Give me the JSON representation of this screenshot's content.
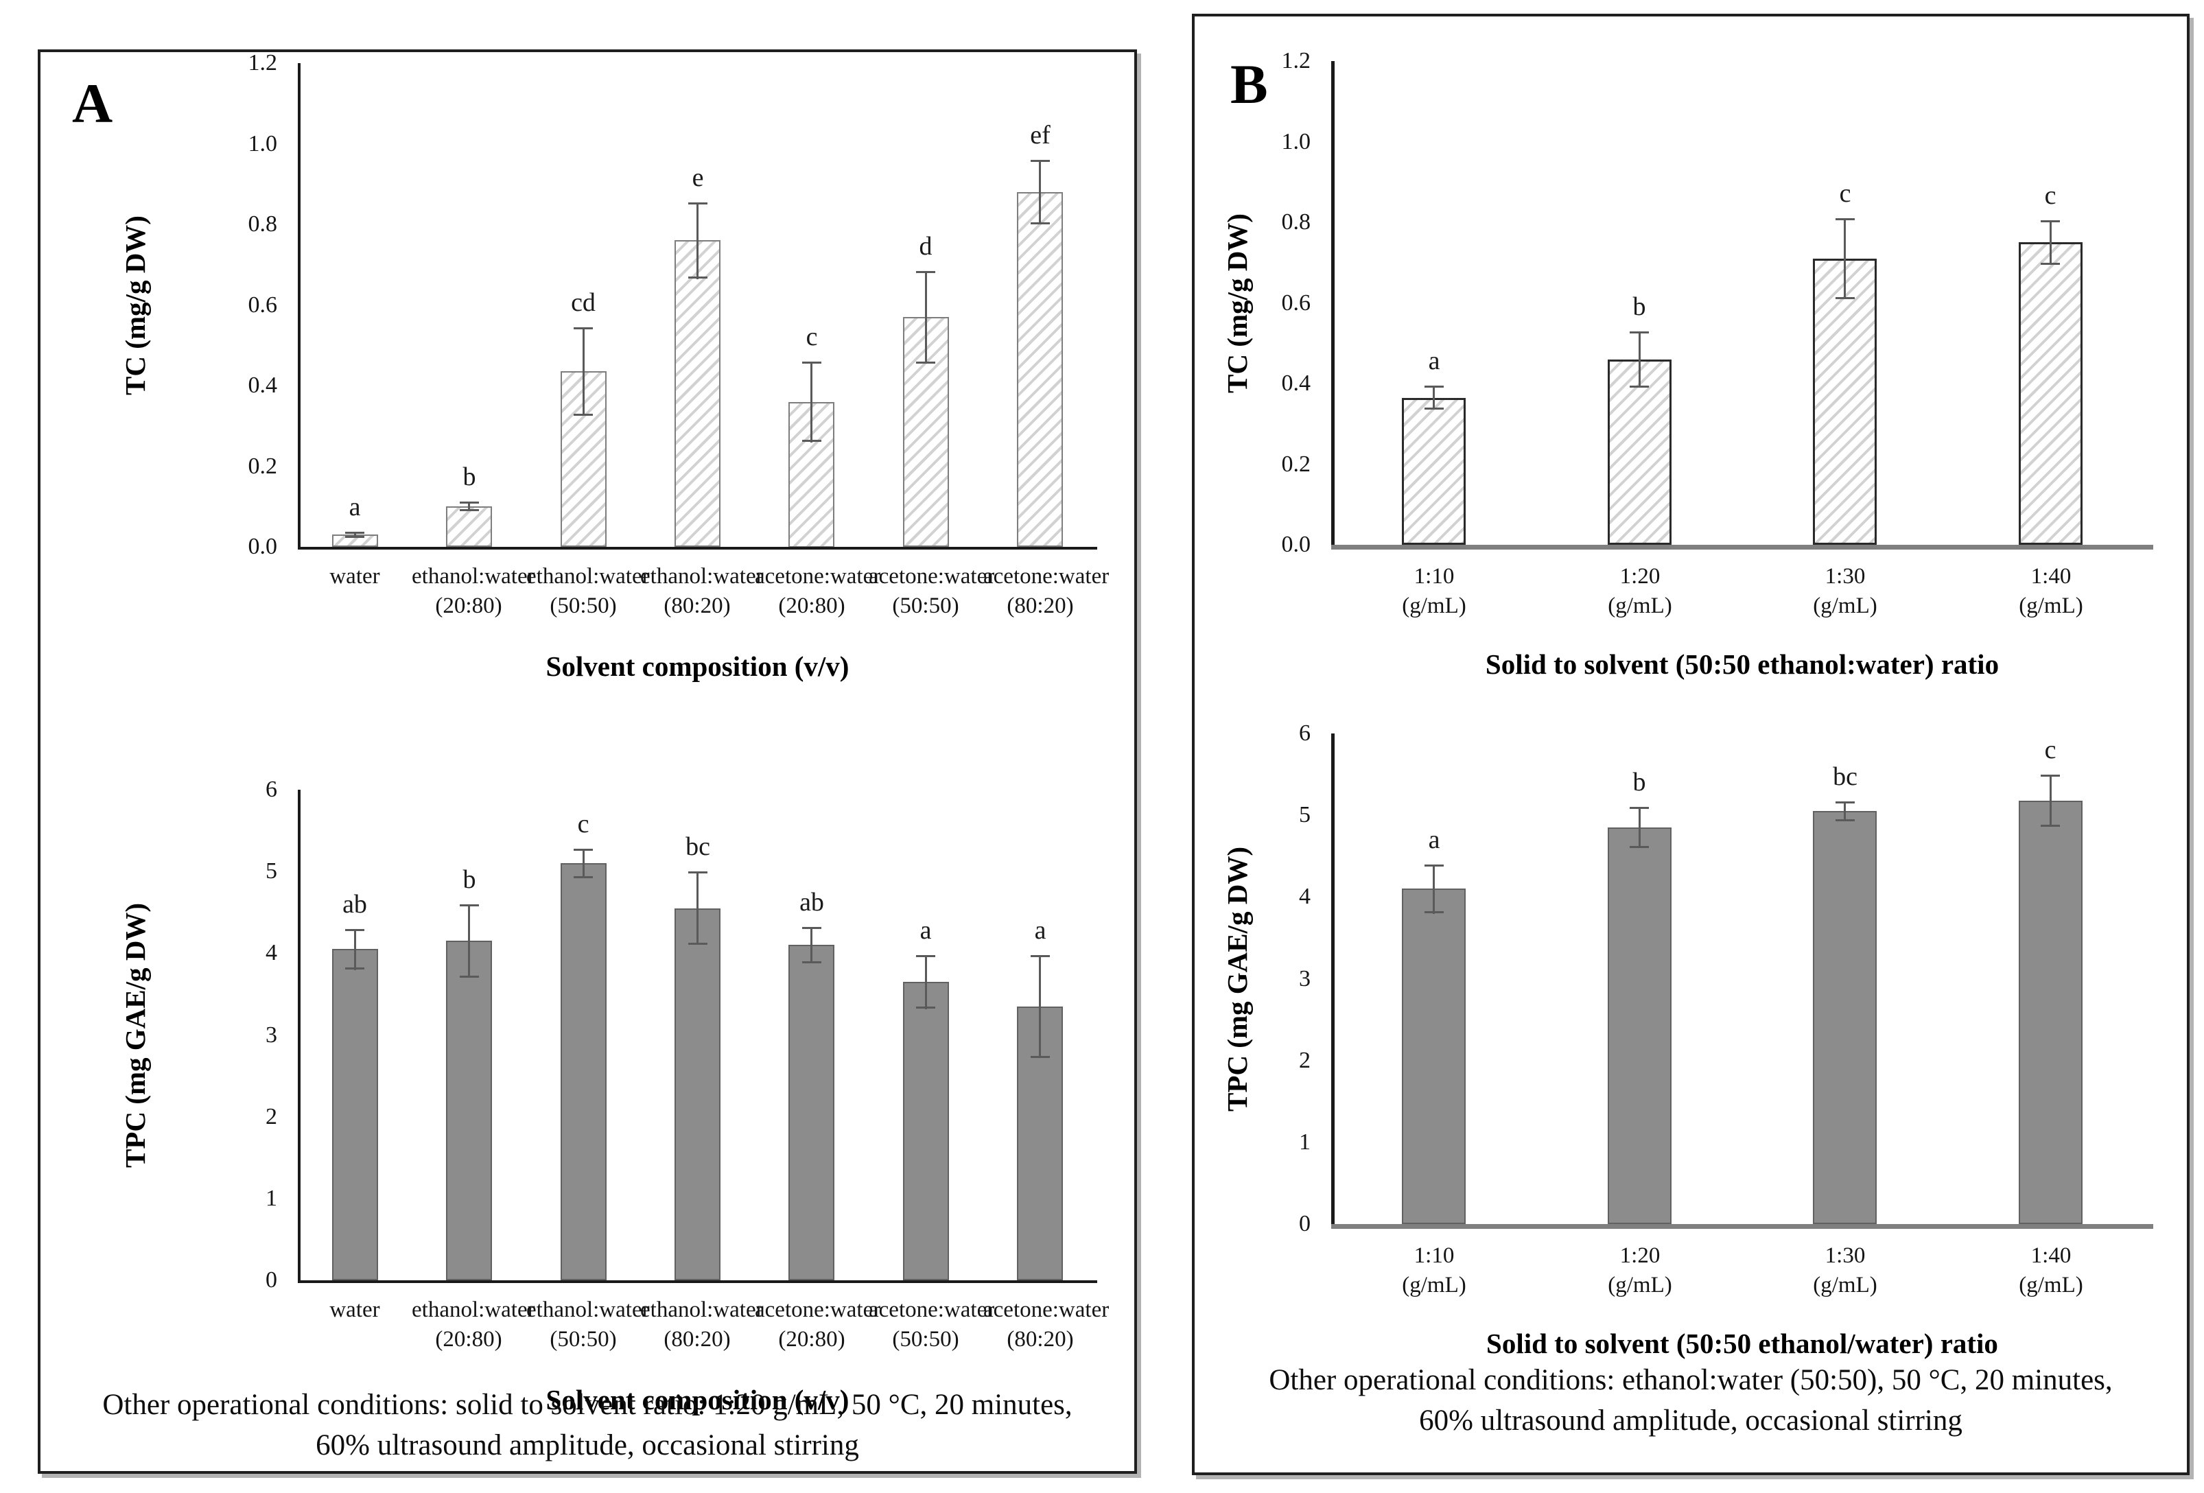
{
  "panels": {
    "A": {
      "label": "A",
      "caption_line1": "Other operational conditions: solid to solvent ratio: 1:20 g/mL, 50 °C, 20 minutes,",
      "caption_line2": "60% ultrasound amplitude, occasional stirring"
    },
    "B": {
      "label": "B",
      "caption_line1": "Other operational conditions: ethanol:water (50:50), 50 °C, 20 minutes,",
      "caption_line2": "60% ultrasound amplitude, occasional stirring"
    }
  },
  "chart_data": [
    {
      "id": "A_TC",
      "type": "bar",
      "panel": "A",
      "style": "hatched",
      "title": "",
      "ylabel": "TC (mg/g DW)",
      "xlabel": "Solvent composition (v/v)",
      "ylim": [
        0,
        1.2
      ],
      "yticks": [
        "0.0",
        "0.2",
        "0.4",
        "0.6",
        "0.8",
        "1.0",
        "1.2"
      ],
      "grid": false,
      "legend": "none",
      "categories": [
        "water",
        "ethanol:water\n(20:80)",
        "ethanol:water\n(50:50)",
        "ethanol:water\n(80:20)",
        "acetone:water\n(20:80)",
        "acetone:water\n(50:50)",
        "acetone:water\n(80:20)"
      ],
      "values": [
        0.03,
        0.1,
        0.435,
        0.76,
        0.36,
        0.57,
        0.88
      ],
      "errors": [
        0.008,
        0.012,
        0.11,
        0.095,
        0.1,
        0.115,
        0.08
      ],
      "sig_letters": [
        "a",
        "b",
        "cd",
        "e",
        "c",
        "d",
        "ef"
      ]
    },
    {
      "id": "A_TPC",
      "type": "bar",
      "panel": "A",
      "style": "solid",
      "title": "",
      "ylabel": "TPC (mg GAE/g DW)",
      "xlabel": "Solvent composition (v/v)",
      "ylim": [
        0,
        6
      ],
      "yticks": [
        "0",
        "1",
        "2",
        "3",
        "4",
        "5",
        "6"
      ],
      "grid": false,
      "legend": "none",
      "categories": [
        "water",
        "ethanol:water\n(20:80)",
        "ethanol:water\n(50:50)",
        "ethanol:water\n(80:20)",
        "acetone:water\n(20:80)",
        "acetone:water\n(50:50)",
        "acetone:water\n(80:20)"
      ],
      "values": [
        4.05,
        4.15,
        5.1,
        4.55,
        4.1,
        3.65,
        3.35
      ],
      "errors": [
        0.25,
        0.45,
        0.18,
        0.45,
        0.22,
        0.33,
        0.63
      ],
      "sig_letters": [
        "ab",
        "b",
        "c",
        "bc",
        "ab",
        "a",
        "a"
      ]
    },
    {
      "id": "B_TC",
      "type": "bar",
      "panel": "B",
      "style": "hatched",
      "title": "",
      "ylabel": "TC (mg/g DW)",
      "xlabel": "Solid to solvent (50:50 ethanol:water) ratio",
      "ylim": [
        0,
        1.2
      ],
      "yticks": [
        "0.0",
        "0.2",
        "0.4",
        "0.6",
        "0.8",
        "1.0",
        "1.2"
      ],
      "grid": false,
      "legend": "none",
      "categories": [
        "1:10\n(g/mL)",
        "1:20\n(g/mL)",
        "1:30\n(g/mL)",
        "1:40\n(g/mL)"
      ],
      "values": [
        0.365,
        0.46,
        0.71,
        0.75
      ],
      "errors": [
        0.03,
        0.07,
        0.1,
        0.055
      ],
      "sig_letters": [
        "a",
        "b",
        "c",
        "c"
      ]
    },
    {
      "id": "B_TPC",
      "type": "bar",
      "panel": "B",
      "style": "solid",
      "title": "",
      "ylabel": "TPC (mg GAE/g DW)",
      "xlabel": "Solid to solvent (50:50 ethanol/water) ratio",
      "ylim": [
        0,
        6
      ],
      "yticks": [
        "0",
        "1",
        "2",
        "3",
        "4",
        "5",
        "6"
      ],
      "grid": false,
      "legend": "none",
      "categories": [
        "1:10\n(g/mL)",
        "1:20\n(g/mL)",
        "1:30\n(g/mL)",
        "1:40\n(g/mL)"
      ],
      "values": [
        4.1,
        4.85,
        5.05,
        5.18
      ],
      "errors": [
        0.3,
        0.25,
        0.12,
        0.32
      ],
      "sig_letters": [
        "a",
        "b",
        "bc",
        "c"
      ]
    }
  ],
  "colors": {
    "solid_bar_fill": "#8c8c8c",
    "solid_bar_border": "#616161",
    "hatch_line": "#d2d2d2",
    "hatch_border_A": "#7e7e7e",
    "hatch_border_B": "#2a2a2a",
    "error_bar": "#5a5a5a",
    "axis": "#1a1a1a",
    "baseline_B": "#7f7f7f"
  }
}
